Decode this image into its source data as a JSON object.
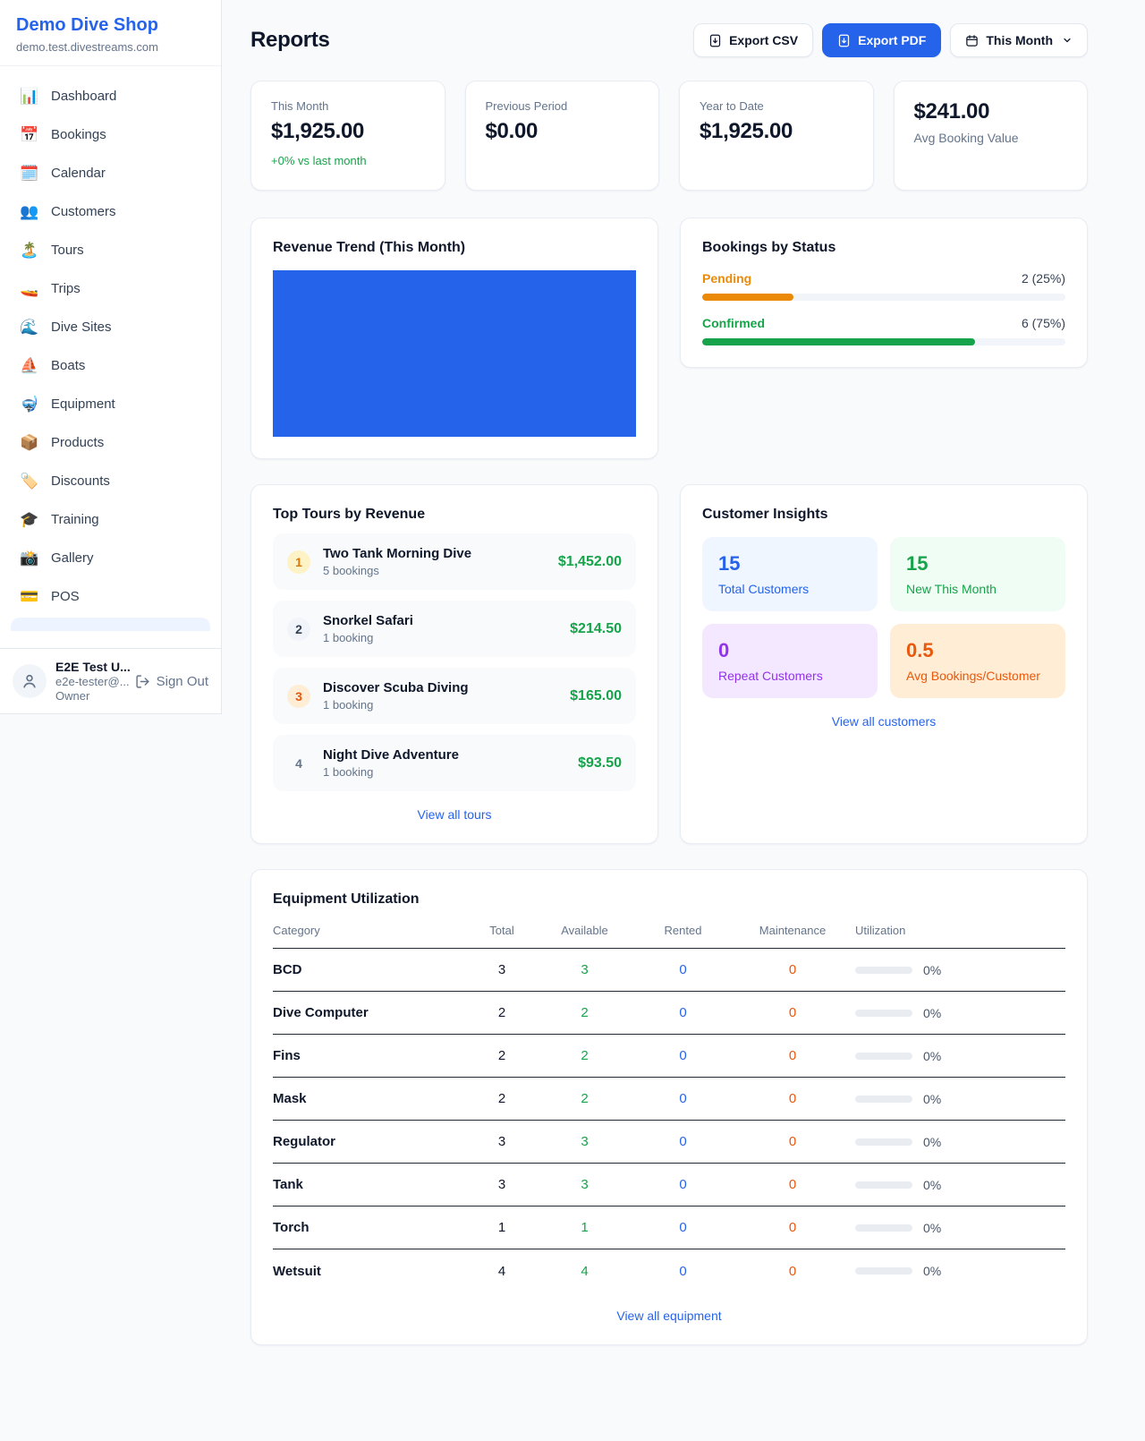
{
  "brand": {
    "name": "Demo Dive Shop",
    "domain": "demo.test.divestreams.com"
  },
  "sidebar": {
    "items": [
      {
        "icon": "📊",
        "label": "Dashboard"
      },
      {
        "icon": "📅",
        "label": "Bookings"
      },
      {
        "icon": "🗓️",
        "label": "Calendar"
      },
      {
        "icon": "👥",
        "label": "Customers"
      },
      {
        "icon": "🏝️",
        "label": "Tours"
      },
      {
        "icon": "🚤",
        "label": "Trips"
      },
      {
        "icon": "🌊",
        "label": "Dive Sites"
      },
      {
        "icon": "⛵",
        "label": "Boats"
      },
      {
        "icon": "🤿",
        "label": "Equipment"
      },
      {
        "icon": "📦",
        "label": "Products"
      },
      {
        "icon": "🏷️",
        "label": "Discounts"
      },
      {
        "icon": "🎓",
        "label": "Training"
      },
      {
        "icon": "📸",
        "label": "Gallery"
      },
      {
        "icon": "💳",
        "label": "POS"
      }
    ]
  },
  "user": {
    "name": "E2E Test U...",
    "email": "e2e-tester@...",
    "role": "Owner",
    "sign_out": "Sign Out"
  },
  "header": {
    "title": "Reports",
    "export_csv": "Export CSV",
    "export_pdf": "Export PDF",
    "period": "This Month"
  },
  "stats": {
    "this_month": {
      "label": "This Month",
      "value": "$1,925.00",
      "delta": "+0% vs last month"
    },
    "previous_period": {
      "label": "Previous Period",
      "value": "$0.00"
    },
    "year_to_date": {
      "label": "Year to Date",
      "value": "$1,925.00"
    },
    "avg_booking": {
      "value": "$241.00",
      "label": "Avg Booking Value"
    }
  },
  "revenue_trend": {
    "title": "Revenue Trend (This Month)"
  },
  "bookings_by_status": {
    "title": "Bookings by Status",
    "rows": [
      {
        "label": "Pending",
        "value": "2 (25%)",
        "pct": 25
      },
      {
        "label": "Confirmed",
        "value": "6 (75%)",
        "pct": 75
      }
    ]
  },
  "top_tours": {
    "title": "Top Tours by Revenue",
    "view_all": "View all tours",
    "items": [
      {
        "rank": "1",
        "name": "Two Tank Morning Dive",
        "bookings": "5 bookings",
        "revenue": "$1,452.00"
      },
      {
        "rank": "2",
        "name": "Snorkel Safari",
        "bookings": "1 booking",
        "revenue": "$214.50"
      },
      {
        "rank": "3",
        "name": "Discover Scuba Diving",
        "bookings": "1 booking",
        "revenue": "$165.00"
      },
      {
        "rank": "4",
        "name": "Night Dive Adventure",
        "bookings": "1 booking",
        "revenue": "$93.50"
      }
    ]
  },
  "customer_insights": {
    "title": "Customer Insights",
    "view_all": "View all customers",
    "tiles": [
      {
        "value": "15",
        "label": "Total Customers"
      },
      {
        "value": "15",
        "label": "New This Month"
      },
      {
        "value": "0",
        "label": "Repeat Customers"
      },
      {
        "value": "0.5",
        "label": "Avg Bookings/Customer"
      }
    ]
  },
  "equipment": {
    "title": "Equipment Utilization",
    "view_all": "View all equipment",
    "columns": [
      "Category",
      "Total",
      "Available",
      "Rented",
      "Maintenance",
      "Utilization"
    ],
    "rows": [
      {
        "category": "BCD",
        "total": "3",
        "available": "3",
        "rented": "0",
        "maintenance": "0",
        "utilization": "0%",
        "utilization_pct": 0
      },
      {
        "category": "Dive Computer",
        "total": "2",
        "available": "2",
        "rented": "0",
        "maintenance": "0",
        "utilization": "0%",
        "utilization_pct": 0
      },
      {
        "category": "Fins",
        "total": "2",
        "available": "2",
        "rented": "0",
        "maintenance": "0",
        "utilization": "0%",
        "utilization_pct": 0
      },
      {
        "category": "Mask",
        "total": "2",
        "available": "2",
        "rented": "0",
        "maintenance": "0",
        "utilization": "0%",
        "utilization_pct": 0
      },
      {
        "category": "Regulator",
        "total": "3",
        "available": "3",
        "rented": "0",
        "maintenance": "0",
        "utilization": "0%",
        "utilization_pct": 0
      },
      {
        "category": "Tank",
        "total": "3",
        "available": "3",
        "rented": "0",
        "maintenance": "0",
        "utilization": "0%",
        "utilization_pct": 0
      },
      {
        "category": "Torch",
        "total": "1",
        "available": "1",
        "rented": "0",
        "maintenance": "0",
        "utilization": "0%",
        "utilization_pct": 0
      },
      {
        "category": "Wetsuit",
        "total": "4",
        "available": "4",
        "rented": "0",
        "maintenance": "0",
        "utilization": "0%",
        "utilization_pct": 0
      }
    ]
  },
  "colors": {
    "primary": "#2563eb",
    "green": "#16a34a",
    "pending_orange": "#ea8a08",
    "maintenance_orange": "#ea580c",
    "purple": "#9333ea"
  }
}
